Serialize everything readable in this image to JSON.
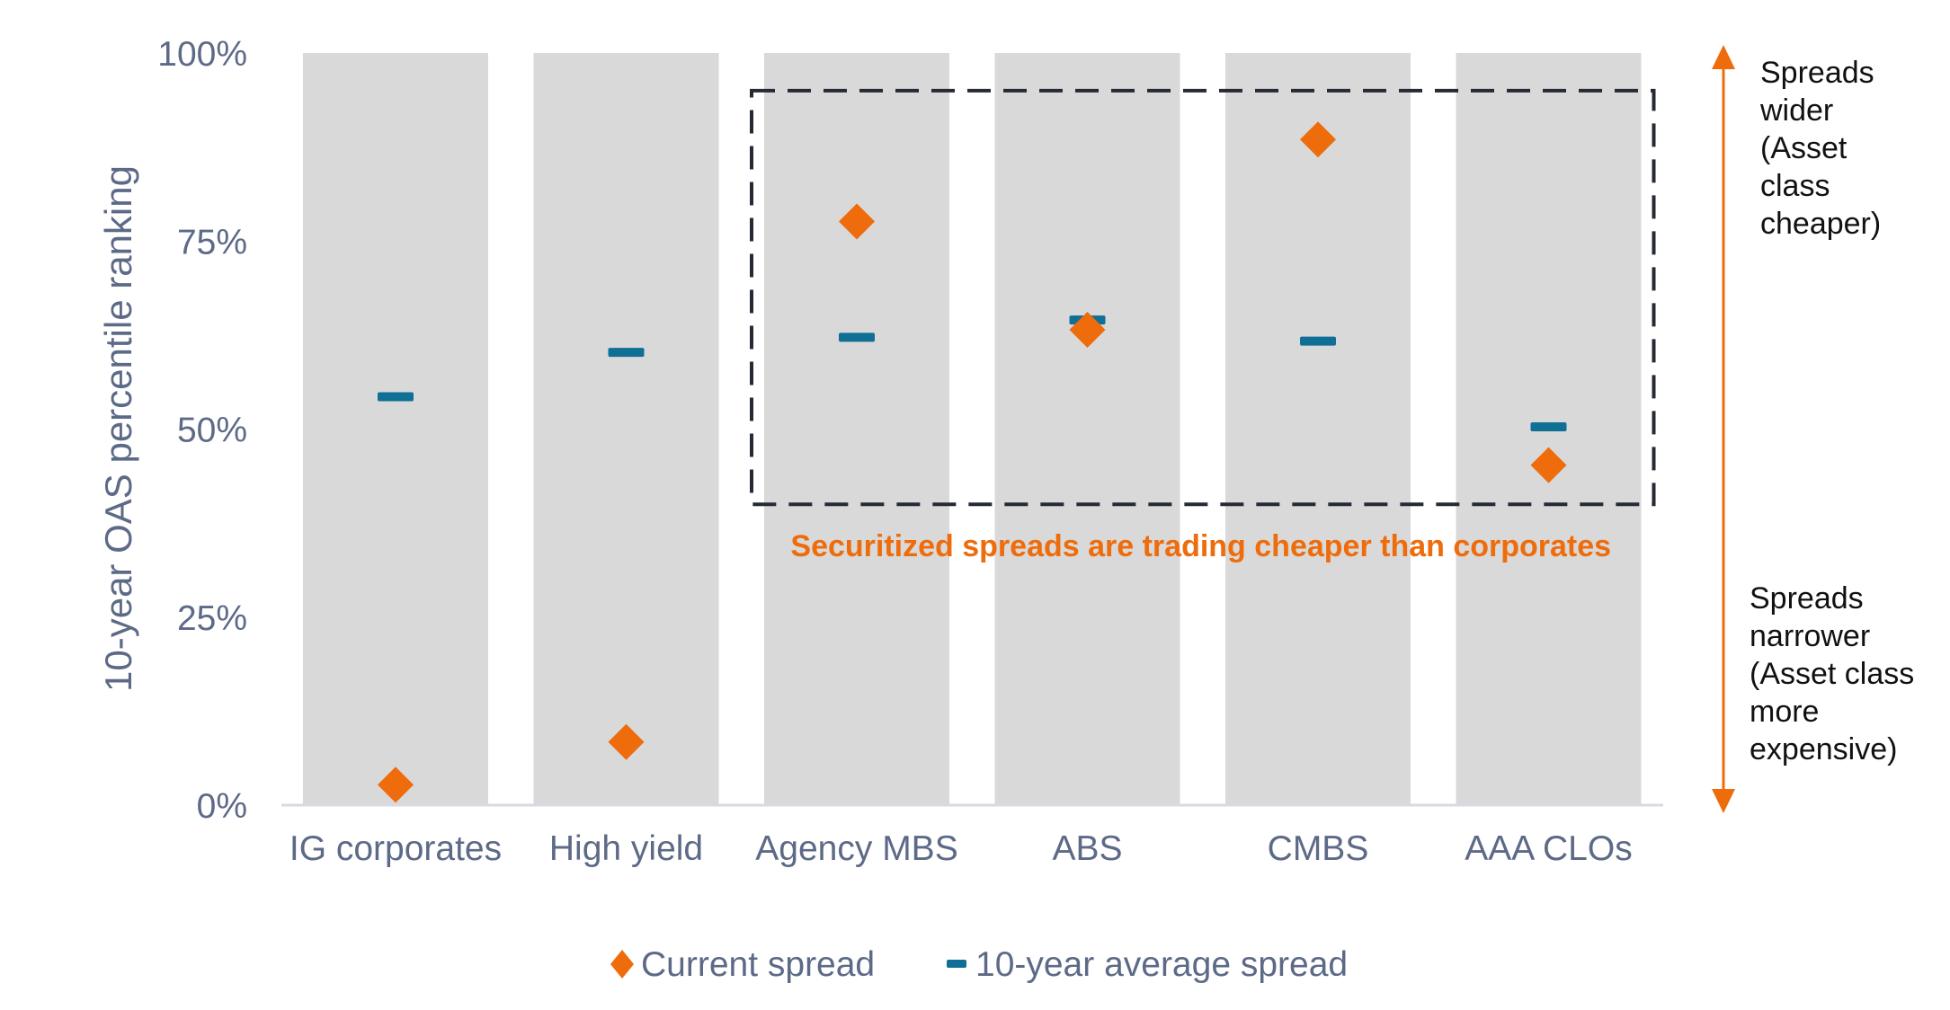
{
  "chart_data": {
    "type": "scatter",
    "title": "",
    "xlabel": "",
    "ylabel": "10-year OAS percentile ranking",
    "ylim": [
      0,
      100
    ],
    "yticks": [
      0,
      25,
      50,
      75,
      100
    ],
    "ytick_labels": [
      "0%",
      "25%",
      "50%",
      "75%",
      "100%"
    ],
    "categories": [
      "IG corporates",
      "High yield",
      "Agency MBS",
      "ABS",
      "CMBS",
      "AAA CLOs"
    ],
    "series": [
      {
        "name": "Current spread",
        "marker": "diamond",
        "color": "#ee6c0b",
        "values": [
          2.7,
          8.4,
          77.6,
          63.2,
          88.5,
          45.2
        ]
      },
      {
        "name": "10-year average spread",
        "marker": "dash",
        "color": "#0f6f95",
        "values": [
          54.3,
          60.2,
          62.2,
          64.5,
          61.7,
          50.3
        ]
      }
    ],
    "band_color": "#d9d9d9",
    "highlight_box": {
      "categories": [
        "Agency MBS",
        "ABS",
        "CMBS",
        "AAA CLOs"
      ],
      "y_range": [
        40,
        95
      ],
      "style": "dashed"
    },
    "annotation": "Securitized spreads are trading  cheaper than corporates",
    "side_labels": {
      "top": [
        "Spreads",
        "wider",
        "(Asset",
        "class",
        "cheaper)"
      ],
      "bottom": [
        "Spreads",
        "narrower",
        "(Asset class",
        "more",
        "expensive)"
      ]
    },
    "legend_position": "bottom",
    "grid": false
  }
}
